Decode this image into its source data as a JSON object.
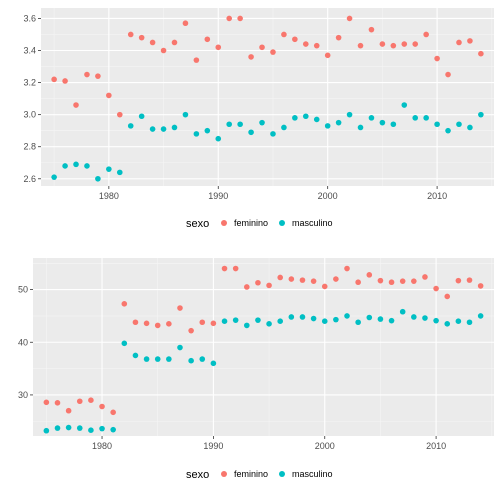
{
  "colors": {
    "feminino": "#F8766D",
    "masculino": "#00BFC4",
    "panel": "#EBEBEB",
    "grid_major": "#FFFFFF"
  },
  "legend": {
    "title": "sexo",
    "items": [
      "feminino",
      "masculino"
    ]
  },
  "chart_data": [
    {
      "type": "scatter",
      "xlim": [
        1973.8,
        2015.2
      ],
      "ylim": [
        2.555,
        3.665
      ],
      "x_ticks": [
        1980,
        1990,
        2000,
        2010
      ],
      "y_ticks": [
        2.6,
        2.8,
        3.0,
        3.2,
        3.4,
        3.6
      ],
      "y_tick_labels": [
        "2.6",
        "2.8",
        "3.0",
        "3.2",
        "3.4",
        "3.6"
      ],
      "legend_position": "bottom",
      "series": [
        {
          "name": "feminino",
          "x": [
            1975,
            1976,
            1977,
            1978,
            1979,
            1980,
            1981,
            1982,
            1983,
            1984,
            1985,
            1986,
            1987,
            1988,
            1989,
            1990,
            1991,
            1992,
            1993,
            1994,
            1995,
            1996,
            1997,
            1998,
            1999,
            2000,
            2001,
            2002,
            2003,
            2004,
            2005,
            2006,
            2007,
            2008,
            2009,
            2010,
            2011,
            2012,
            2013,
            2014
          ],
          "y": [
            3.22,
            3.21,
            3.06,
            3.25,
            3.24,
            3.12,
            3.0,
            3.5,
            3.48,
            3.45,
            3.4,
            3.45,
            3.57,
            3.34,
            3.47,
            3.42,
            3.6,
            3.6,
            3.36,
            3.42,
            3.39,
            3.5,
            3.47,
            3.44,
            3.43,
            3.37,
            3.48,
            3.6,
            3.43,
            3.53,
            3.44,
            3.43,
            3.44,
            3.44,
            3.5,
            3.35,
            3.25,
            3.45,
            3.46,
            3.38
          ]
        },
        {
          "name": "masculino",
          "x": [
            1975,
            1976,
            1977,
            1978,
            1979,
            1980,
            1981,
            1982,
            1983,
            1984,
            1985,
            1986,
            1987,
            1988,
            1989,
            1990,
            1991,
            1992,
            1993,
            1994,
            1995,
            1996,
            1997,
            1998,
            1999,
            2000,
            2001,
            2002,
            2003,
            2004,
            2005,
            2006,
            2007,
            2008,
            2009,
            2010,
            2011,
            2012,
            2013,
            2014
          ],
          "y": [
            2.61,
            2.68,
            2.69,
            2.68,
            2.6,
            2.66,
            2.64,
            2.93,
            2.99,
            2.91,
            2.91,
            2.92,
            3.0,
            2.88,
            2.9,
            2.85,
            2.94,
            2.94,
            2.89,
            2.95,
            2.88,
            2.92,
            2.98,
            2.99,
            2.97,
            2.93,
            2.95,
            3.0,
            2.92,
            2.98,
            2.95,
            2.94,
            3.06,
            2.98,
            2.98,
            2.94,
            2.9,
            2.94,
            2.92,
            3.0
          ]
        }
      ]
    },
    {
      "type": "scatter",
      "xlim": [
        1973.8,
        2015.2
      ],
      "ylim": [
        22.2,
        56.0
      ],
      "x_ticks": [
        1980,
        1990,
        2000,
        2010
      ],
      "y_ticks": [
        30,
        40,
        50
      ],
      "y_tick_labels": [
        "30",
        "40",
        "50"
      ],
      "legend_position": "bottom",
      "series": [
        {
          "name": "feminino",
          "x": [
            1975,
            1976,
            1977,
            1978,
            1979,
            1980,
            1981,
            1982,
            1983,
            1984,
            1985,
            1986,
            1987,
            1988,
            1989,
            1990,
            1991,
            1992,
            1993,
            1994,
            1995,
            1996,
            1997,
            1998,
            1999,
            2000,
            2001,
            2002,
            2003,
            2004,
            2005,
            2006,
            2007,
            2008,
            2009,
            2010,
            2011,
            2012,
            2013,
            2014
          ],
          "y": [
            28.6,
            28.5,
            27.0,
            28.8,
            29.0,
            27.8,
            26.7,
            47.3,
            43.8,
            43.6,
            43.2,
            43.5,
            46.5,
            42.2,
            43.8,
            43.6,
            54.0,
            54.0,
            50.5,
            51.3,
            50.8,
            52.3,
            52.0,
            51.8,
            51.6,
            50.6,
            52.0,
            54.0,
            51.4,
            52.8,
            51.7,
            51.4,
            51.6,
            51.6,
            52.4,
            50.2,
            48.7,
            51.7,
            51.8,
            50.7
          ]
        },
        {
          "name": "masculino",
          "x": [
            1975,
            1976,
            1977,
            1978,
            1979,
            1980,
            1981,
            1982,
            1983,
            1984,
            1985,
            1986,
            1987,
            1988,
            1989,
            1990,
            1991,
            1992,
            1993,
            1994,
            1995,
            1996,
            1997,
            1998,
            1999,
            2000,
            2001,
            2002,
            2003,
            2004,
            2005,
            2006,
            2007,
            2008,
            2009,
            2010,
            2011,
            2012,
            2013,
            2014
          ],
          "y": [
            23.2,
            23.7,
            23.8,
            23.7,
            23.3,
            23.6,
            23.4,
            39.8,
            37.5,
            36.8,
            36.8,
            36.8,
            39.0,
            36.5,
            36.8,
            36.0,
            44.0,
            44.2,
            43.2,
            44.2,
            43.5,
            44.0,
            44.8,
            44.8,
            44.5,
            44.0,
            44.3,
            45.0,
            43.8,
            44.7,
            44.4,
            44.1,
            45.8,
            44.8,
            44.6,
            44.1,
            43.5,
            44.0,
            43.8,
            45.0
          ]
        }
      ]
    }
  ]
}
